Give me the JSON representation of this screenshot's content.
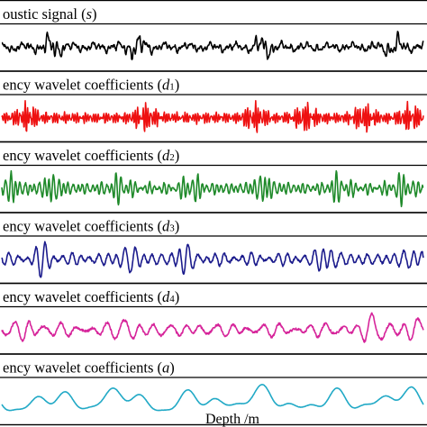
{
  "chart_data": {
    "type": "line",
    "xlabel": "Depth /m",
    "panels": [
      {
        "title_text": "oustic signal (",
        "title_var": "s",
        "title_sub": "",
        "title_close": ")",
        "color": "#000000",
        "amplitude": 0.78,
        "freq": "mixed",
        "bursts": [
          0.12,
          0.32,
          0.62,
          0.93
        ]
      },
      {
        "title_text": "ency wavelet coefficients (",
        "title_var": "d",
        "title_sub": "1",
        "title_close": ")",
        "color": "#ee1111",
        "amplitude": 0.85,
        "freq": "very-high",
        "bursts": [
          0.06,
          0.34,
          0.6,
          0.72,
          0.86,
          0.97
        ]
      },
      {
        "title_text": "ency wavelet coefficients (",
        "title_var": "d",
        "title_sub": "2",
        "title_close": ")",
        "color": "#1f8a2a",
        "amplitude": 0.9,
        "freq": "high",
        "bursts": [
          0.02,
          0.12,
          0.28,
          0.45,
          0.62,
          0.8,
          0.95
        ]
      },
      {
        "title_text": "ency wavelet coefficients (",
        "title_var": "d",
        "title_sub": "3",
        "title_close": ")",
        "color": "#1b1b8c",
        "amplitude": 0.9,
        "freq": "medium",
        "bursts": [
          0.1,
          0.3,
          0.43,
          0.77,
          0.98
        ]
      },
      {
        "title_text": "ency wavelet coefficients (",
        "title_var": "d",
        "title_sub": "4",
        "title_close": ")",
        "color": "#d6249a",
        "amplitude": 0.85,
        "freq": "low",
        "bursts": [
          0.07,
          0.3,
          0.88,
          0.98
        ]
      },
      {
        "title_text": "ency wavelet coefficients (",
        "title_var": "a",
        "title_sub": "",
        "title_close": ")",
        "color": "#21a9c6",
        "amplitude": 0.8,
        "freq": "very-low",
        "bursts": [
          0.08,
          0.56,
          0.93
        ]
      }
    ]
  }
}
